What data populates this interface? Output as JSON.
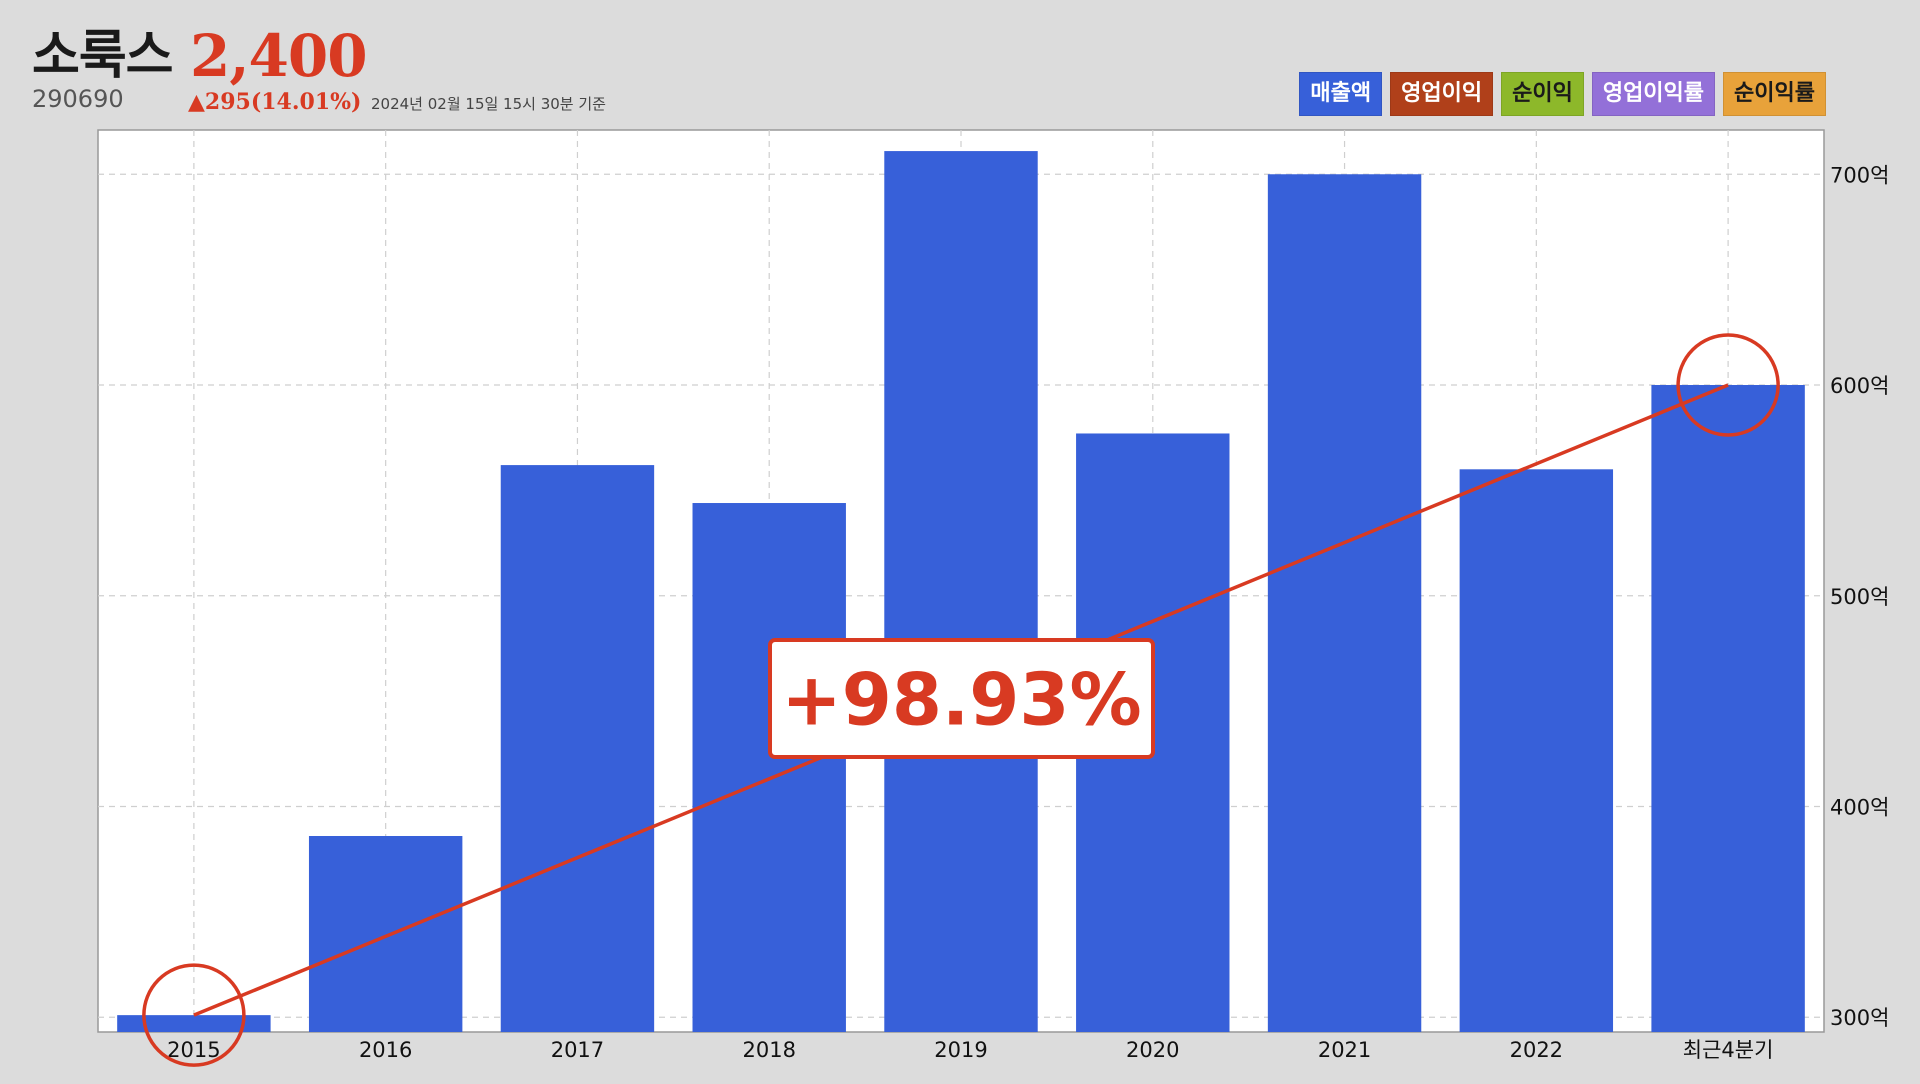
{
  "header": {
    "company_name": "소룩스",
    "price": "2,400",
    "ticker": "290690",
    "change": "▲295(14.01%)",
    "as_of": "2024년 02월 15일 15시 30분 기준"
  },
  "legend": [
    {
      "label": "매출액",
      "color": "#3760d9",
      "dark_text": false
    },
    {
      "label": "영업이익",
      "color": "#b0401a",
      "dark_text": false
    },
    {
      "label": "순이익",
      "color": "#8db82a",
      "dark_text": true
    },
    {
      "label": "영업이익률",
      "color": "#9370d8",
      "dark_text": false
    },
    {
      "label": "순이익률",
      "color": "#e8a23a",
      "dark_text": true
    }
  ],
  "annotation": {
    "label": "+98.93%",
    "from_category": "2015",
    "to_category": "최근4분기",
    "color": "#d83a22"
  },
  "chart_data": {
    "type": "bar",
    "categories": [
      "2015",
      "2016",
      "2017",
      "2018",
      "2019",
      "2020",
      "2021",
      "2022",
      "최근4분기"
    ],
    "series": [
      {
        "name": "매출액",
        "values": [
          301,
          386,
          562,
          544,
          711,
          577,
          700,
          560,
          600
        ],
        "color": "#3760d9"
      }
    ],
    "ylim": [
      293,
      721
    ],
    "yticks": [
      300,
      400,
      500,
      600,
      700
    ],
    "ytick_labels": [
      "300억",
      "400억",
      "500억",
      "600억",
      "700억"
    ],
    "y_axis_side": "right",
    "grid": true,
    "title": "",
    "xlabel": "",
    "ylabel": ""
  }
}
